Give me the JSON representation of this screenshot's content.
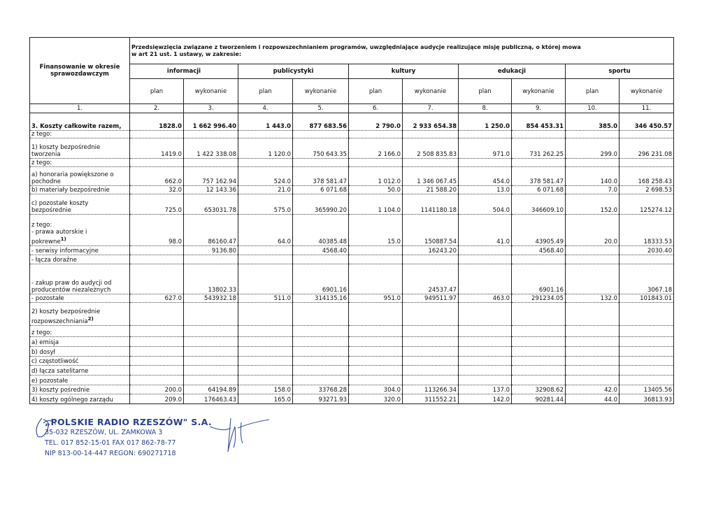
{
  "header": {
    "row_label": "Finansowanie w okresie sprawozdawczym",
    "group_title": [
      "Przedsięwzięcia związane z tworzeniem i rozpowszechnianiem programów, uwzględniające audycje realizujące misję publiczną, o której mowa",
      "w art 21 ust. 1 ustawy, w zakresie:"
    ],
    "groups": [
      "informacji",
      "publicystyki",
      "kultury",
      "edukacji",
      "sportu"
    ],
    "sub": [
      "plan",
      "wykonanie"
    ],
    "numbers": [
      "1.",
      "2.",
      "3.",
      "4.",
      "5.",
      "6.",
      "7.",
      "8.",
      "9.",
      "10.",
      "11."
    ]
  },
  "rows": [
    {
      "label": [
        "3. Koszty całkowite razem,"
      ],
      "values": [
        "1828.0",
        "1 662 996.40",
        "1 443.0",
        "877 683.56",
        "2 790.0",
        "2 933 654.38",
        "1 250.0",
        "854 453.31",
        "385.0",
        "346 450.57"
      ]
    },
    {
      "label": [
        "z tego:"
      ],
      "values": [
        null,
        null,
        null,
        null,
        null,
        null,
        null,
        null,
        null,
        null
      ]
    },
    {
      "label": [
        "1) koszty bezpośrednie",
        "tworzenia"
      ],
      "values": [
        "1419.0",
        "1 422 338.08",
        "1 120.0",
        "750 643.35",
        "2 166.0",
        "2 508 835.83",
        "971.0",
        "731 262.25",
        "299.0",
        "296 231.08"
      ]
    },
    {
      "label": [
        "z tego:"
      ],
      "values": [
        null,
        null,
        null,
        null,
        null,
        null,
        null,
        null,
        null,
        null
      ]
    },
    {
      "label": [
        "a) honoraria powiększone o",
        "pochodne"
      ],
      "values": [
        "662.0",
        "757 162.94",
        "524.0",
        "378 581.47",
        "1 012.0",
        "1 346 067.45",
        "454.0",
        "378 581.47",
        "140.0",
        "168 258.43"
      ]
    },
    {
      "label": [
        "b) materiały bezpośrednie"
      ],
      "values": [
        "32.0",
        "12 143.36",
        "21.0",
        "6 071.68",
        "50.0",
        "21 588.20",
        "13.0",
        "6 071.68",
        "7.0",
        "2 698.53"
      ]
    },
    {
      "label": [
        "c) pozostałe koszty",
        "bezpośrednie"
      ],
      "values": [
        "725.0",
        "653031.78",
        "575.0",
        "365990.20",
        "1 104.0",
        "1141180.18",
        "504.0",
        "346609.10",
        "152.0",
        "125274.12"
      ]
    },
    {
      "label": [
        "z tego:",
        "- prawa autorskie i",
        "pokrewne"
      ],
      "sup": "1)",
      "values": [
        "98.0",
        "86160.47",
        "64.0",
        "40385.48",
        "15.0",
        "150887.54",
        "41.0",
        "43905.49",
        "20.0",
        "18333.53"
      ]
    },
    {
      "label": [
        "- serwisy informacyjne"
      ],
      "values": [
        null,
        "9136.80",
        null,
        "4568.40",
        null,
        "16243.20",
        null,
        "4568.40",
        null,
        "2030.40"
      ]
    },
    {
      "label": [
        "- łącza doraźne"
      ],
      "values": [
        null,
        null,
        null,
        null,
        null,
        null,
        null,
        null,
        null,
        null
      ]
    },
    {
      "label": [
        "- zakup praw do audycji od",
        "producentów niezależnych"
      ],
      "values": [
        null,
        "13802.33",
        null,
        "6901.16",
        null,
        "24537.47",
        null,
        "6901.16",
        null,
        "3067.18"
      ]
    },
    {
      "label": [
        "- pozostałe"
      ],
      "values": [
        "627.0",
        "543932.18",
        "511.0",
        "314135.16",
        "951.0",
        "949511.97",
        "463.0",
        "291234.05",
        "132.0",
        "101843.01"
      ]
    },
    {
      "label": [
        "2) koszty bezpośrednie",
        "rozpowszechniania"
      ],
      "sup": "2)",
      "values": [
        null,
        null,
        null,
        null,
        null,
        null,
        null,
        null,
        null,
        null
      ]
    },
    {
      "label": [
        "z tego:"
      ],
      "values": [
        null,
        null,
        null,
        null,
        null,
        null,
        null,
        null,
        null,
        null
      ]
    },
    {
      "label": [
        "a) emisja"
      ],
      "values": [
        null,
        null,
        null,
        null,
        null,
        null,
        null,
        null,
        null,
        null
      ]
    },
    {
      "label": [
        "b) dosył"
      ],
      "values": [
        null,
        null,
        null,
        null,
        null,
        null,
        null,
        null,
        null,
        null
      ]
    },
    {
      "label": [
        "c) częstotliwość"
      ],
      "values": [
        null,
        null,
        null,
        null,
        null,
        null,
        null,
        null,
        null,
        null
      ]
    },
    {
      "label": [
        "d) łącza satelitarne"
      ],
      "values": [
        null,
        null,
        null,
        null,
        null,
        null,
        null,
        null,
        null,
        null
      ]
    },
    {
      "label": [
        "e) pozostałe"
      ],
      "values": [
        null,
        null,
        null,
        null,
        null,
        null,
        null,
        null,
        null,
        null
      ]
    },
    {
      "label": [
        "3) koszty pośrednie"
      ],
      "values": [
        "200.0",
        "64194.89",
        "158.0",
        "33768.28",
        "304.0",
        "113266.34",
        "137.0",
        "32908.62",
        "42.0",
        "13405.56"
      ]
    },
    {
      "label": [
        "4) koszty ogólnego zarządu"
      ],
      "values": [
        "209.0",
        "176463.43",
        "165.0",
        "93271.93",
        "320.0",
        "311552.21",
        "142.0",
        "90281.44",
        "44.0",
        "36813.93"
      ]
    }
  ],
  "stamp": [
    "„POLSKIE RADIO RZESZÓW\" S.A.",
    "35-032 RZESZÓW, UL. ZAMKOWA 3",
    "TEL. 017 852-15-01 FAX 017 862-78-77",
    "NIP 813-00-14-447 REGON: 690271718"
  ]
}
